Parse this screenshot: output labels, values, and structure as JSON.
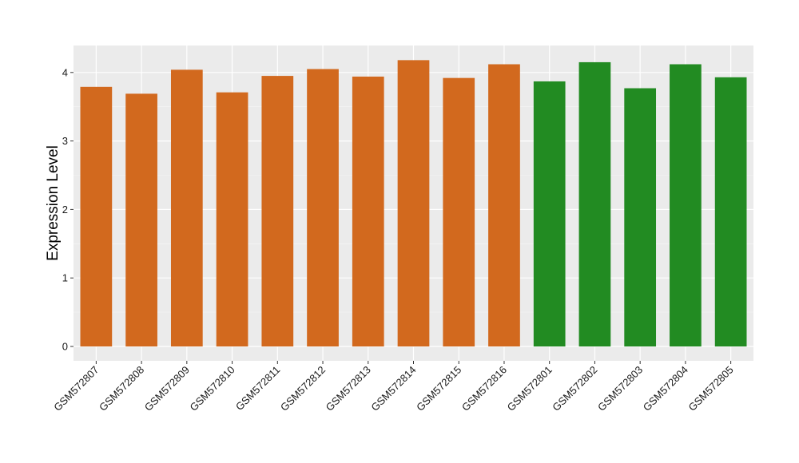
{
  "chart_data": {
    "type": "bar",
    "ylabel": "Expression Level",
    "xlabel": "",
    "categories": [
      "GSM572807",
      "GSM572808",
      "GSM572809",
      "GSM572810",
      "GSM572811",
      "GSM572812",
      "GSM572813",
      "GSM572814",
      "GSM572815",
      "GSM572816",
      "GSM572801",
      "GSM572802",
      "GSM572803",
      "GSM572804",
      "GSM572805"
    ],
    "values": [
      3.79,
      3.69,
      4.04,
      3.71,
      3.95,
      4.05,
      3.94,
      4.18,
      3.92,
      4.12,
      3.87,
      4.15,
      3.77,
      4.12,
      3.93
    ],
    "groups": [
      "a",
      "a",
      "a",
      "a",
      "a",
      "a",
      "a",
      "a",
      "a",
      "a",
      "b",
      "b",
      "b",
      "b",
      "b"
    ],
    "group_colors": {
      "a": "#d2691e",
      "b": "#228b22"
    },
    "ylim": [
      -0.2,
      4.38
    ],
    "yticks": [
      0,
      1,
      2,
      3,
      4
    ],
    "grid": true,
    "panel_background": "#ebebeb"
  }
}
